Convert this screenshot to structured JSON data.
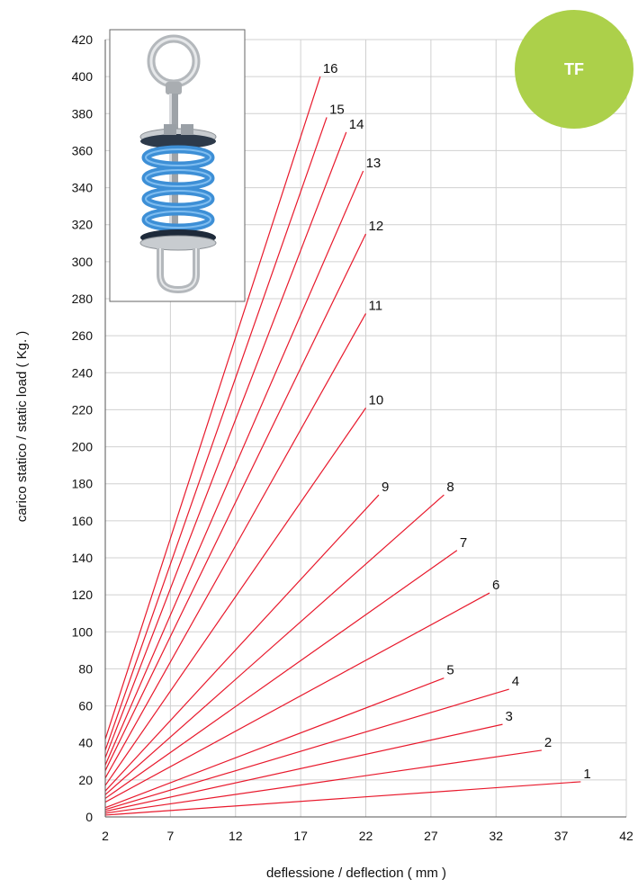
{
  "badge": {
    "label": "TF",
    "color": "#acd04a"
  },
  "colors": {
    "line": "#e8192c",
    "grid": "#d0d0d0",
    "axis": "#555555"
  },
  "product_image": {
    "icon": "spring-isolator-icon"
  },
  "chart_data": {
    "type": "line",
    "title": "",
    "xlabel": "deflessione / deflection ( mm )",
    "ylabel": "carico statico / static load ( Kg. )",
    "xlim": [
      2,
      42
    ],
    "ylim": [
      0,
      420
    ],
    "x_ticks": [
      2,
      7,
      12,
      17,
      22,
      27,
      32,
      37,
      42
    ],
    "y_ticks": [
      0,
      20,
      40,
      60,
      80,
      100,
      120,
      140,
      160,
      180,
      200,
      220,
      240,
      260,
      280,
      300,
      320,
      340,
      360,
      380,
      400,
      420
    ],
    "grid": true,
    "series": [
      {
        "name": "1",
        "points": [
          [
            2,
            1
          ],
          [
            38.5,
            19
          ]
        ]
      },
      {
        "name": "2",
        "points": [
          [
            2,
            2
          ],
          [
            35.5,
            36
          ]
        ]
      },
      {
        "name": "3",
        "points": [
          [
            2,
            3
          ],
          [
            32.5,
            50
          ]
        ]
      },
      {
        "name": "4",
        "points": [
          [
            2,
            4
          ],
          [
            33,
            69
          ]
        ]
      },
      {
        "name": "5",
        "points": [
          [
            2,
            5
          ],
          [
            28,
            75
          ]
        ]
      },
      {
        "name": "6",
        "points": [
          [
            2,
            8
          ],
          [
            31.5,
            121
          ]
        ]
      },
      {
        "name": "7",
        "points": [
          [
            2,
            10
          ],
          [
            29,
            144
          ]
        ]
      },
      {
        "name": "8",
        "points": [
          [
            2,
            12
          ],
          [
            28,
            174
          ]
        ]
      },
      {
        "name": "9",
        "points": [
          [
            2,
            14
          ],
          [
            23,
            174
          ]
        ]
      },
      {
        "name": "10",
        "points": [
          [
            2,
            17
          ],
          [
            22,
            221
          ]
        ]
      },
      {
        "name": "11",
        "points": [
          [
            2,
            21
          ],
          [
            22,
            272
          ]
        ]
      },
      {
        "name": "12",
        "points": [
          [
            2,
            25
          ],
          [
            22,
            315
          ]
        ]
      },
      {
        "name": "13",
        "points": [
          [
            2,
            28
          ],
          [
            21.8,
            349
          ]
        ]
      },
      {
        "name": "14",
        "points": [
          [
            2,
            32
          ],
          [
            20.5,
            370
          ]
        ]
      },
      {
        "name": "15",
        "points": [
          [
            2,
            36
          ],
          [
            19,
            378
          ]
        ]
      },
      {
        "name": "16",
        "points": [
          [
            2,
            42
          ],
          [
            18.5,
            400
          ]
        ]
      }
    ]
  }
}
